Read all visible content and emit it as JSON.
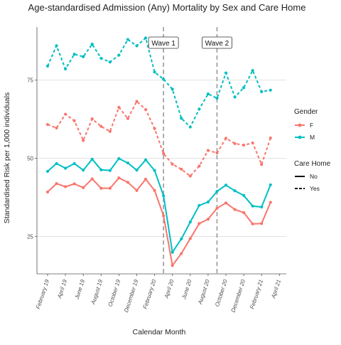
{
  "chart_data": {
    "type": "line",
    "title": "Age-standardised Admission (Any) Mortality by Sex and Care Home",
    "xlabel": "Calendar Month",
    "ylabel": "Standardised Risk per 1,000 individuals",
    "x_ticks": [
      "February 19",
      "April 19",
      "June 19",
      "August 19",
      "October 19",
      "December 19",
      "February 20",
      "April 20",
      "June 20",
      "August 20",
      "October 20",
      "December 20",
      "February 21",
      "April 21"
    ],
    "y_ticks": [
      25,
      50,
      75
    ],
    "ylim": [
      13,
      92
    ],
    "months": [
      "2019-02",
      "2019-03",
      "2019-04",
      "2019-05",
      "2019-06",
      "2019-07",
      "2019-08",
      "2019-09",
      "2019-10",
      "2019-11",
      "2019-12",
      "2020-01",
      "2020-02",
      "2020-03",
      "2020-04",
      "2020-05",
      "2020-06",
      "2020-07",
      "2020-08",
      "2020-09",
      "2020-10",
      "2020-11",
      "2020-12",
      "2021-01",
      "2021-02",
      "2021-03"
    ],
    "series": [
      {
        "gender": "F",
        "care_home": "No",
        "values": [
          39.2,
          41.9,
          40.9,
          41.8,
          40.6,
          43.4,
          40.4,
          40.4,
          43.7,
          42.3,
          39.7,
          43.3,
          39.7,
          31.6,
          15.7,
          19.5,
          24.3,
          29.1,
          30.5,
          34.0,
          35.7,
          33.6,
          32.6,
          29.0,
          29.1,
          35.9
        ]
      },
      {
        "gender": "M",
        "care_home": "No",
        "values": [
          45.8,
          48.3,
          46.8,
          48.3,
          46.2,
          49.7,
          46.3,
          46.1,
          49.9,
          48.5,
          46.2,
          49.5,
          46.1,
          38.0,
          19.9,
          24.2,
          29.6,
          34.9,
          36.0,
          39.4,
          41.4,
          39.6,
          38.1,
          34.7,
          34.4,
          41.5
        ]
      },
      {
        "gender": "F",
        "care_home": "Yes",
        "values": [
          60.8,
          59.7,
          64.1,
          62.0,
          55.7,
          62.6,
          60.2,
          58.6,
          66.3,
          62.7,
          68.2,
          65.6,
          59.5,
          51.5,
          48.1,
          46.5,
          44.3,
          47.5,
          52.5,
          51.7,
          56.4,
          54.7,
          54.2,
          54.9,
          48.0,
          56.5
        ]
      },
      {
        "gender": "M",
        "care_home": "Yes",
        "values": [
          79.5,
          86.0,
          78.6,
          83.3,
          82.5,
          86.5,
          82.0,
          80.8,
          83.0,
          88.0,
          86.0,
          88.5,
          77.6,
          75.3,
          72.1,
          62.8,
          60.0,
          65.7,
          70.6,
          69.2,
          77.3,
          69.6,
          72.6,
          78.1,
          71.3,
          71.8
        ]
      }
    ],
    "annotations": [
      {
        "label": "Wave 1",
        "x": "2020-03"
      },
      {
        "label": "Wave 2",
        "x": "2020-09"
      }
    ],
    "vlines": [
      "2020-03",
      "2020-09"
    ],
    "legend": {
      "placement": "right",
      "gender": {
        "title": "Gender",
        "items": [
          {
            "label": "F",
            "color": "#F8766D"
          },
          {
            "label": "M",
            "color": "#00BFC4"
          }
        ]
      },
      "care_home": {
        "title": "Care Home",
        "items": [
          {
            "label": "No",
            "dash": "solid"
          },
          {
            "label": "Yes",
            "dash": "dashed"
          }
        ]
      }
    },
    "grid": "horizontal-major",
    "colors": {
      "F": "#F8766D",
      "M": "#00BFC4",
      "grid": "#d0d0d0",
      "vline": "#9a9a9a",
      "axis": "#555555"
    }
  }
}
